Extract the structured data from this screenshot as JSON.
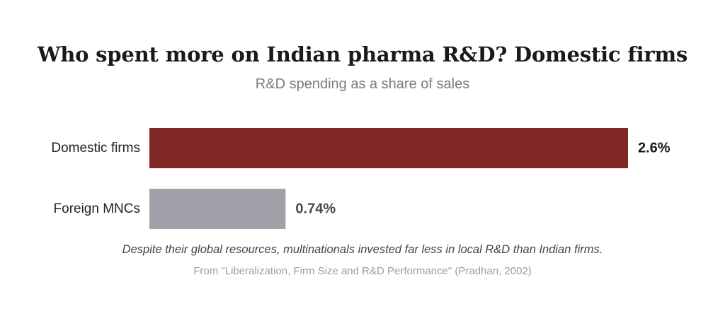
{
  "title": "Who spent more on Indian pharma R&D? Domestic firms",
  "subtitle": "R&D spending as a share of sales",
  "annotation": "Despite their global resources, multinationals invested far less in local R&D than Indian firms.",
  "source": "From \"Liberalization, Firm Size and R&D Performance\" (Pradhan, 2002)",
  "chart_data": {
    "type": "bar",
    "orientation": "horizontal",
    "categories": [
      "Domestic firms",
      "Foreign MNCs"
    ],
    "values": [
      2.6,
      0.74
    ],
    "value_labels": [
      "2.6%",
      "0.74%"
    ],
    "colors": [
      "#802826",
      "#a1a1a9"
    ],
    "xlim": [
      0,
      2.6
    ],
    "grid": false,
    "legend": "none"
  }
}
